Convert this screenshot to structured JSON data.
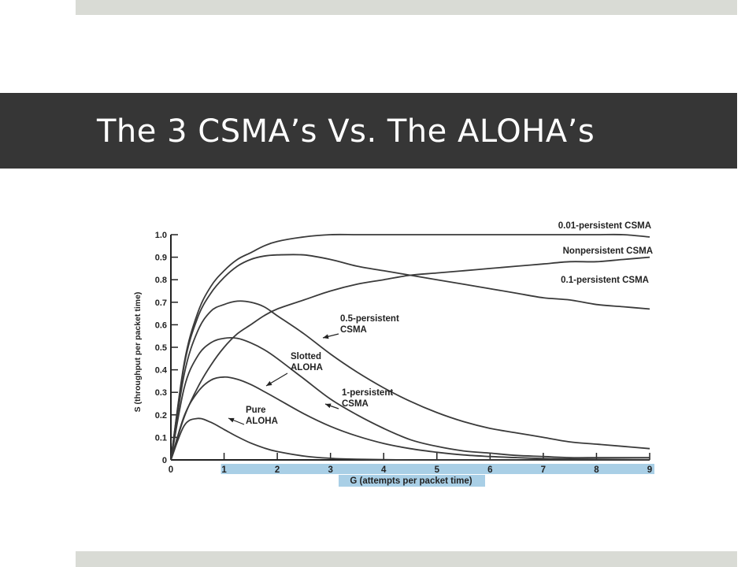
{
  "slide": {
    "title": "The 3 CSMA’s Vs. The ALOHA’s",
    "colors": {
      "title_bar": "#363636",
      "title_text": "#ffffff",
      "accent_strips": "#d9dbd5",
      "x_axis_band": "#a9cfe6",
      "curve": "#3a3a3a"
    }
  },
  "chart_data": {
    "type": "line",
    "title": "",
    "xlabel": "G (attempts per packet time)",
    "ylabel": "S (throughput per packet time)",
    "xlim": [
      0,
      9
    ],
    "ylim": [
      0,
      1.0
    ],
    "x_ticks": [
      "0",
      "1",
      "2",
      "3",
      "4",
      "5",
      "6",
      "7",
      "8",
      "9"
    ],
    "y_ticks": [
      "0",
      "0.1",
      "0.2",
      "0.3",
      "0.4",
      "0.5",
      "0.6",
      "0.7",
      "0.8",
      "0.9",
      "1.0"
    ],
    "grid": false,
    "x": [
      0,
      0.25,
      0.5,
      0.75,
      1,
      1.25,
      1.5,
      1.75,
      2,
      2.5,
      3,
      3.5,
      4,
      4.5,
      5,
      5.5,
      6,
      6.5,
      7,
      7.5,
      8,
      8.5,
      9
    ],
    "series": [
      {
        "name": "0.01-persistent CSMA",
        "values": [
          0,
          0.43,
          0.65,
          0.77,
          0.84,
          0.89,
          0.92,
          0.95,
          0.97,
          0.99,
          1.0,
          1.0,
          1.0,
          1.0,
          1.0,
          1.0,
          1.0,
          1.0,
          1.0,
          1.0,
          1.0,
          1.0,
          0.99
        ]
      },
      {
        "name": "Nonpersistent CSMA",
        "values": [
          0,
          0.19,
          0.32,
          0.42,
          0.5,
          0.56,
          0.6,
          0.64,
          0.67,
          0.71,
          0.75,
          0.78,
          0.8,
          0.82,
          0.83,
          0.84,
          0.85,
          0.86,
          0.87,
          0.88,
          0.88,
          0.89,
          0.9
        ]
      },
      {
        "name": "0.1-persistent CSMA",
        "values": [
          0,
          0.42,
          0.63,
          0.74,
          0.81,
          0.86,
          0.89,
          0.905,
          0.91,
          0.91,
          0.89,
          0.86,
          0.84,
          0.82,
          0.8,
          0.78,
          0.76,
          0.74,
          0.72,
          0.71,
          0.69,
          0.68,
          0.67
        ]
      },
      {
        "name": "0.5-persistent CSMA",
        "values": [
          0,
          0.38,
          0.57,
          0.66,
          0.69,
          0.705,
          0.7,
          0.68,
          0.64,
          0.56,
          0.47,
          0.39,
          0.32,
          0.26,
          0.21,
          0.17,
          0.14,
          0.12,
          0.1,
          0.08,
          0.07,
          0.06,
          0.05
        ]
      },
      {
        "name": "1-persistent CSMA",
        "values": [
          0,
          0.32,
          0.46,
          0.52,
          0.54,
          0.54,
          0.52,
          0.49,
          0.45,
          0.36,
          0.27,
          0.2,
          0.14,
          0.09,
          0.06,
          0.04,
          0.03,
          0.02,
          0.015,
          0.01,
          0.01,
          0.01,
          0.01
        ]
      },
      {
        "name": "Slotted ALOHA",
        "values": [
          0,
          0.195,
          0.3,
          0.354,
          0.368,
          0.358,
          0.335,
          0.304,
          0.271,
          0.205,
          0.149,
          0.106,
          0.073,
          0.05,
          0.034,
          0.022,
          0.015,
          0.01,
          0.006,
          0.004,
          0.003,
          0.002,
          0.001
        ]
      },
      {
        "name": "Pure ALOHA",
        "values": [
          0,
          0.152,
          0.184,
          0.167,
          0.135,
          0.103,
          0.075,
          0.053,
          0.037,
          0.017,
          0.007,
          0.003,
          0.001,
          0.0,
          0.0,
          0.0,
          0.0,
          0.0,
          0.0,
          0.0,
          0.0,
          0.0,
          0.0
        ]
      }
    ],
    "annotations": [
      {
        "lines": [
          "0.5-persistent",
          "CSMA"
        ],
        "series": "0.5-persistent CSMA"
      },
      {
        "lines": [
          "Slotted",
          "ALOHA"
        ],
        "series": "Slotted ALOHA"
      },
      {
        "lines": [
          "1-persistent",
          "CSMA"
        ],
        "series": "1-persistent CSMA"
      },
      {
        "lines": [
          "Pure",
          "ALOHA"
        ],
        "series": "Pure ALOHA"
      }
    ],
    "right_labels": [
      "0.01-persistent CSMA",
      "Nonpersistent CSMA",
      "0.1-persistent CSMA"
    ]
  }
}
